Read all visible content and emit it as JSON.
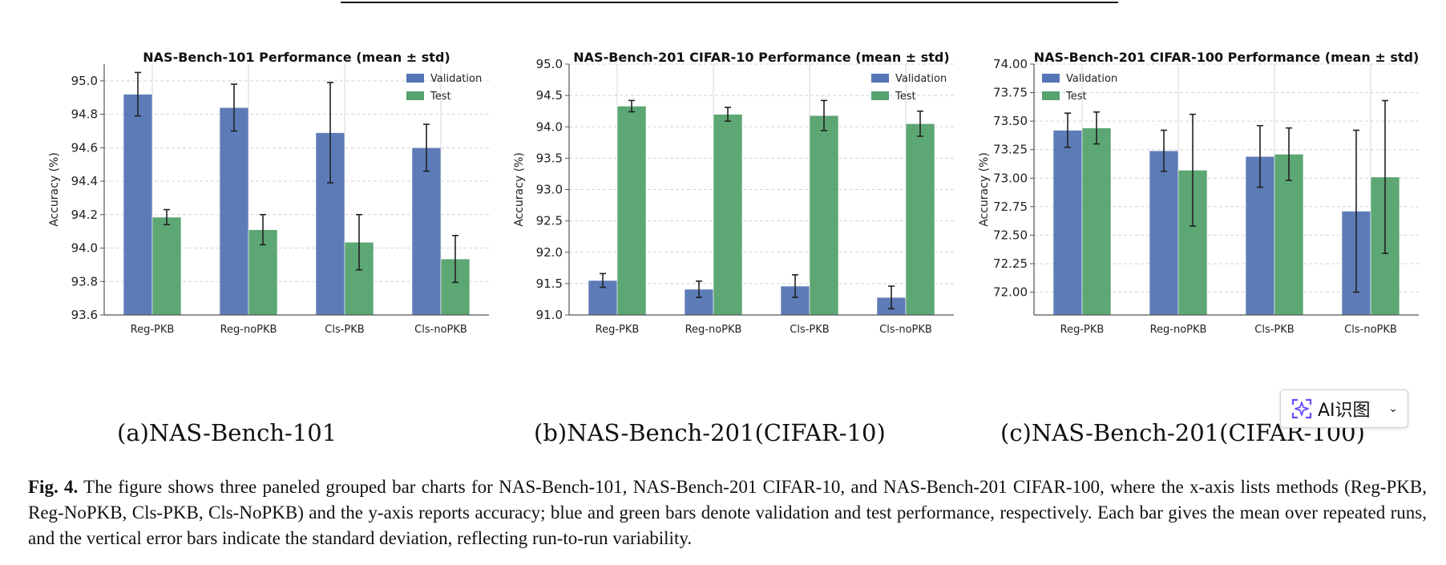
{
  "chart_data": [
    {
      "type": "bar",
      "title": "NAS-Bench-101 Performance (mean ± std)",
      "xlabel": "",
      "ylabel": "Accuracy (%)",
      "categories": [
        "Reg-PKB",
        "Reg-noPKB",
        "Cls-PKB",
        "Cls-noPKB"
      ],
      "ylim": [
        93.6,
        95.1
      ],
      "yticks": [
        93.6,
        93.8,
        94.0,
        94.2,
        94.4,
        94.6,
        94.8,
        95.0
      ],
      "ytick_labels": [
        "93.6",
        "93.8",
        "94.0",
        "94.2",
        "94.4",
        "94.6",
        "94.8",
        "95.0"
      ],
      "grid": true,
      "legend": "top-right",
      "series": [
        {
          "name": "Validation",
          "color": "#5575b4",
          "values": [
            94.92,
            94.84,
            94.69,
            94.6
          ],
          "err": [
            0.13,
            0.14,
            0.3,
            0.14
          ]
        },
        {
          "name": "Test",
          "color": "#55a36e",
          "values": [
            94.185,
            94.11,
            94.035,
            93.935
          ],
          "err": [
            0.045,
            0.09,
            0.165,
            0.14
          ]
        }
      ]
    },
    {
      "type": "bar",
      "title": "NAS-Bench-201 CIFAR-10 Performance (mean ± std)",
      "xlabel": "",
      "ylabel": "Accuracy (%)",
      "categories": [
        "Reg-PKB",
        "Reg-noPKB",
        "Cls-PKB",
        "Cls-noPKB"
      ],
      "ylim": [
        91.0,
        95.0
      ],
      "yticks": [
        91.0,
        91.5,
        92.0,
        92.5,
        93.0,
        93.5,
        94.0,
        94.5,
        95.0
      ],
      "ytick_labels": [
        "91.0",
        "91.5",
        "92.0",
        "92.5",
        "93.0",
        "93.5",
        "94.0",
        "94.5",
        "95.0"
      ],
      "grid": true,
      "legend": "top-right",
      "series": [
        {
          "name": "Validation",
          "color": "#5575b4",
          "values": [
            91.55,
            91.41,
            91.46,
            91.28
          ],
          "err": [
            0.11,
            0.13,
            0.18,
            0.18
          ]
        },
        {
          "name": "Test",
          "color": "#55a36e",
          "values": [
            94.33,
            94.2,
            94.18,
            94.05
          ],
          "err": [
            0.09,
            0.11,
            0.24,
            0.2
          ]
        }
      ]
    },
    {
      "type": "bar",
      "title": "NAS-Bench-201 CIFAR-100 Performance (mean ± std)",
      "xlabel": "",
      "ylabel": "Accuracy (%)",
      "categories": [
        "Reg-PKB",
        "Reg-noPKB",
        "Cls-PKB",
        "Cls-noPKB"
      ],
      "ylim": [
        71.8,
        74.0
      ],
      "yticks": [
        72.0,
        72.25,
        72.5,
        72.75,
        73.0,
        73.25,
        73.5,
        73.75,
        74.0
      ],
      "ytick_labels": [
        "72.00",
        "72.25",
        "72.50",
        "72.75",
        "73.00",
        "73.25",
        "73.50",
        "73.75",
        "74.00"
      ],
      "grid": true,
      "legend": "top-left",
      "series": [
        {
          "name": "Validation",
          "color": "#5575b4",
          "values": [
            73.42,
            73.24,
            73.19,
            72.71
          ],
          "err": [
            0.15,
            0.18,
            0.27,
            0.71
          ]
        },
        {
          "name": "Test",
          "color": "#55a36e",
          "values": [
            73.44,
            73.07,
            73.21,
            73.01
          ],
          "err": [
            0.14,
            0.49,
            0.23,
            0.67
          ]
        }
      ]
    }
  ],
  "subcaptions": {
    "a": "(a)NAS-Bench-101",
    "b": "(b)NAS-Bench-201(CIFAR-10)",
    "c": "(c)NAS-Bench-201(CIFAR-100)"
  },
  "caption": {
    "label": "Fig. 4.",
    "text": " The figure shows three paneled grouped bar charts for NAS-Bench-101, NAS-Bench-201 CIFAR-10, and NAS-Bench-201 CIFAR-100, where the x-axis lists methods (Reg-PKB, Reg-NoPKB, Cls-PKB, Cls-NoPKB) and the y-axis reports accuracy; blue and green bars denote validation and test performance, respectively. Each bar gives the mean over repeated runs, and the vertical error bars indicate the standard deviation, reflecting run-to-run variability."
  },
  "ai_widget": {
    "label": "AI识图",
    "icon": "sparkle-scan-icon",
    "chevron": "chevron-down-icon"
  }
}
